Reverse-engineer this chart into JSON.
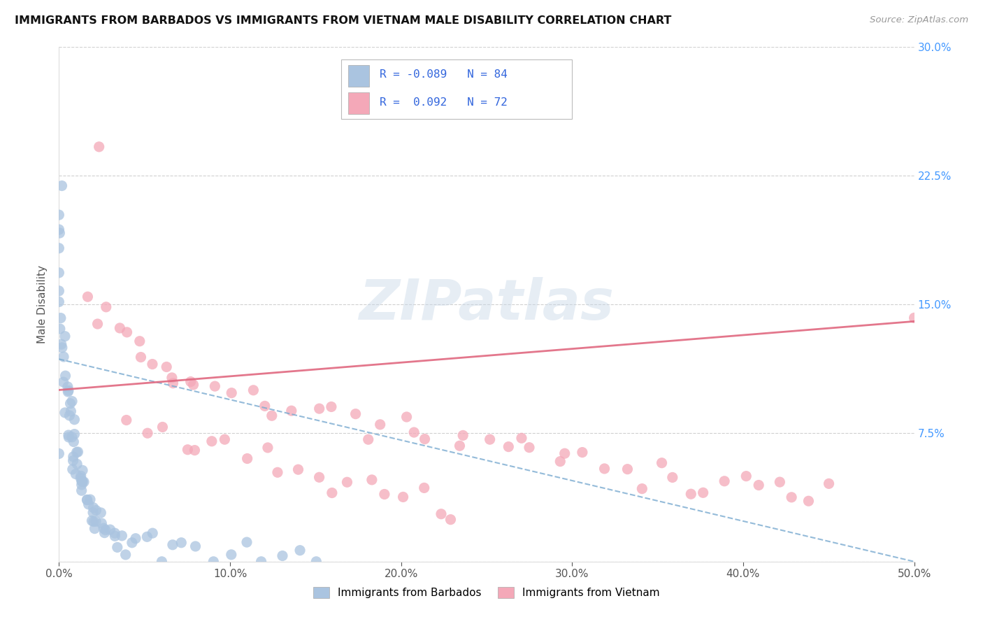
{
  "title": "IMMIGRANTS FROM BARBADOS VS IMMIGRANTS FROM VIETNAM MALE DISABILITY CORRELATION CHART",
  "source": "Source: ZipAtlas.com",
  "ylabel": "Male Disability",
  "xlim": [
    0.0,
    0.5
  ],
  "ylim": [
    0.0,
    0.3
  ],
  "xticks": [
    0.0,
    0.1,
    0.2,
    0.3,
    0.4,
    0.5
  ],
  "yticks": [
    0.0,
    0.075,
    0.15,
    0.225,
    0.3
  ],
  "xticklabels": [
    "0.0%",
    "10.0%",
    "20.0%",
    "30.0%",
    "40.0%",
    "50.0%"
  ],
  "yticklabels_right": [
    "",
    "7.5%",
    "15.0%",
    "22.5%",
    "30.0%"
  ],
  "legend_R1": "-0.089",
  "legend_N1": "84",
  "legend_R2": "0.092",
  "legend_N2": "72",
  "color_blue": "#aac4e0",
  "color_pink": "#f4a8b8",
  "line_color_blue": "#7aaad0",
  "line_color_pink": "#e06880",
  "right_tick_color": "#4499ff",
  "watermark": "ZIPatlas",
  "barb_x": [
    0.0,
    0.0,
    0.0,
    0.0,
    0.0,
    0.0,
    0.0,
    0.0,
    0.0,
    0.0,
    0.002,
    0.002,
    0.003,
    0.003,
    0.004,
    0.004,
    0.005,
    0.005,
    0.005,
    0.005,
    0.006,
    0.006,
    0.007,
    0.007,
    0.007,
    0.007,
    0.008,
    0.008,
    0.008,
    0.009,
    0.009,
    0.01,
    0.01,
    0.01,
    0.01,
    0.011,
    0.011,
    0.012,
    0.012,
    0.013,
    0.013,
    0.013,
    0.014,
    0.014,
    0.015,
    0.015,
    0.016,
    0.016,
    0.017,
    0.017,
    0.018,
    0.019,
    0.02,
    0.02,
    0.021,
    0.022,
    0.023,
    0.024,
    0.025,
    0.026,
    0.027,
    0.028,
    0.03,
    0.031,
    0.033,
    0.035,
    0.038,
    0.04,
    0.043,
    0.046,
    0.05,
    0.055,
    0.06,
    0.065,
    0.07,
    0.08,
    0.09,
    0.1,
    0.11,
    0.12,
    0.13,
    0.14,
    0.15,
    0.0
  ],
  "barb_y": [
    0.22,
    0.205,
    0.195,
    0.185,
    0.175,
    0.165,
    0.155,
    0.148,
    0.142,
    0.136,
    0.13,
    0.125,
    0.12,
    0.115,
    0.11,
    0.107,
    0.104,
    0.1,
    0.097,
    0.094,
    0.091,
    0.088,
    0.085,
    0.082,
    0.079,
    0.076,
    0.074,
    0.071,
    0.069,
    0.067,
    0.065,
    0.063,
    0.061,
    0.059,
    0.057,
    0.055,
    0.053,
    0.051,
    0.05,
    0.048,
    0.047,
    0.046,
    0.044,
    0.043,
    0.042,
    0.04,
    0.039,
    0.038,
    0.036,
    0.035,
    0.034,
    0.033,
    0.031,
    0.03,
    0.029,
    0.028,
    0.027,
    0.026,
    0.025,
    0.024,
    0.023,
    0.022,
    0.02,
    0.019,
    0.018,
    0.016,
    0.015,
    0.013,
    0.012,
    0.01,
    0.009,
    0.008,
    0.007,
    0.006,
    0.005,
    0.004,
    0.003,
    0.002,
    0.002,
    0.001,
    0.001,
    0.001,
    0.0,
    0.06
  ],
  "viet_x": [
    0.02,
    0.025,
    0.03,
    0.035,
    0.04,
    0.045,
    0.05,
    0.055,
    0.06,
    0.065,
    0.07,
    0.075,
    0.08,
    0.09,
    0.1,
    0.11,
    0.12,
    0.13,
    0.14,
    0.15,
    0.16,
    0.17,
    0.18,
    0.19,
    0.2,
    0.21,
    0.22,
    0.23,
    0.24,
    0.25,
    0.26,
    0.27,
    0.28,
    0.29,
    0.3,
    0.31,
    0.32,
    0.33,
    0.34,
    0.35,
    0.36,
    0.37,
    0.38,
    0.39,
    0.4,
    0.41,
    0.42,
    0.43,
    0.44,
    0.45,
    0.04,
    0.05,
    0.06,
    0.07,
    0.08,
    0.09,
    0.1,
    0.11,
    0.12,
    0.13,
    0.14,
    0.15,
    0.16,
    0.17,
    0.18,
    0.19,
    0.2,
    0.21,
    0.22,
    0.23,
    0.025,
    0.5
  ],
  "viet_y": [
    0.155,
    0.148,
    0.142,
    0.136,
    0.13,
    0.125,
    0.122,
    0.118,
    0.114,
    0.111,
    0.108,
    0.106,
    0.104,
    0.1,
    0.098,
    0.095,
    0.093,
    0.09,
    0.088,
    0.086,
    0.084,
    0.082,
    0.08,
    0.078,
    0.077,
    0.075,
    0.074,
    0.072,
    0.07,
    0.068,
    0.067,
    0.065,
    0.064,
    0.062,
    0.06,
    0.059,
    0.057,
    0.056,
    0.054,
    0.053,
    0.052,
    0.05,
    0.049,
    0.048,
    0.046,
    0.045,
    0.044,
    0.043,
    0.042,
    0.041,
    0.08,
    0.075,
    0.072,
    0.07,
    0.067,
    0.065,
    0.062,
    0.06,
    0.058,
    0.055,
    0.052,
    0.05,
    0.048,
    0.045,
    0.043,
    0.04,
    0.038,
    0.036,
    0.034,
    0.032,
    0.245,
    0.148
  ]
}
